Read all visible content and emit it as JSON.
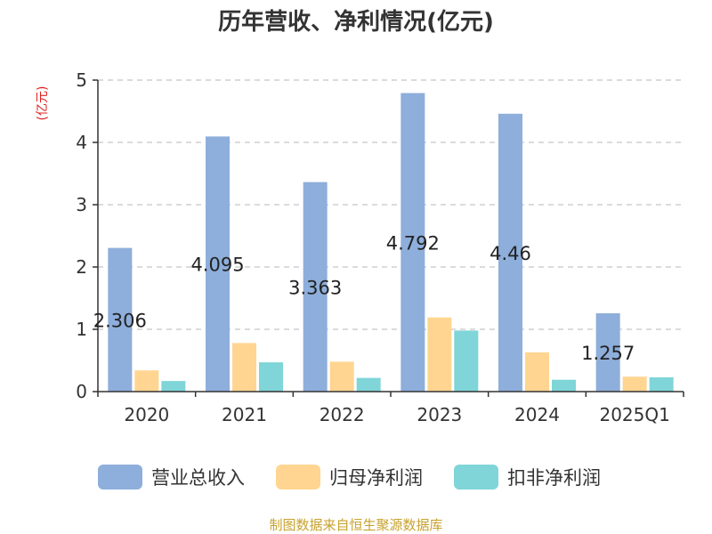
{
  "chart_data": {
    "type": "bar",
    "title": "历年营收、净利情况(亿元)",
    "unit_label": "(亿元)",
    "categories": [
      "2020",
      "2021",
      "2022",
      "2023",
      "2024",
      "2025Q1"
    ],
    "ylim": [
      0,
      5
    ],
    "yticks": [
      "0",
      "1",
      "2",
      "3",
      "4",
      "5"
    ],
    "grid": true,
    "legend_position": "bottom",
    "series": [
      {
        "name": "营业总收入",
        "color": "#8eaedb",
        "values": [
          2.306,
          4.095,
          3.363,
          4.792,
          4.46,
          1.257
        ],
        "labels": [
          "2.306",
          "4.095",
          "3.363",
          "4.792",
          "4.46",
          "1.257"
        ]
      },
      {
        "name": "归母净利润",
        "color": "#ffd591",
        "values": [
          0.34,
          0.78,
          0.48,
          1.19,
          0.63,
          0.24
        ]
      },
      {
        "name": "扣非净利润",
        "color": "#7fd5d8",
        "values": [
          0.17,
          0.47,
          0.22,
          0.98,
          0.19,
          0.23
        ]
      }
    ]
  },
  "source": "制图数据来自恒生聚源数据库"
}
